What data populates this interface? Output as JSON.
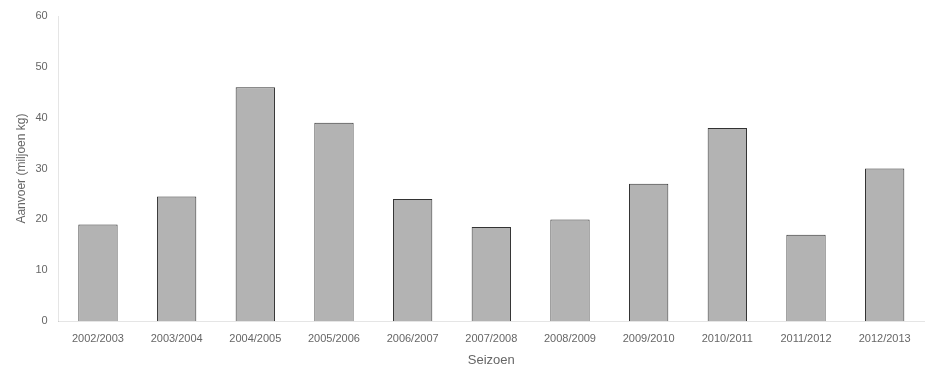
{
  "chart_data": {
    "type": "bar",
    "categories": [
      "2002/2003",
      "2003/2004",
      "2004/2005",
      "2005/2006",
      "2006/2007",
      "2007/2008",
      "2008/2009",
      "2009/2010",
      "2010/2011",
      "2011/2012",
      "2012/2013"
    ],
    "values": [
      19,
      24.5,
      46,
      39,
      24,
      18.5,
      20,
      27,
      38,
      17,
      30
    ],
    "color": "#b3b3b3",
    "xlabel": "Seizoen",
    "ylabel": "Aanvoer (miljoen kg)",
    "ylim": [
      0,
      60
    ],
    "yticks": [
      0,
      10,
      20,
      30,
      40,
      50,
      60
    ],
    "grid": false
  }
}
